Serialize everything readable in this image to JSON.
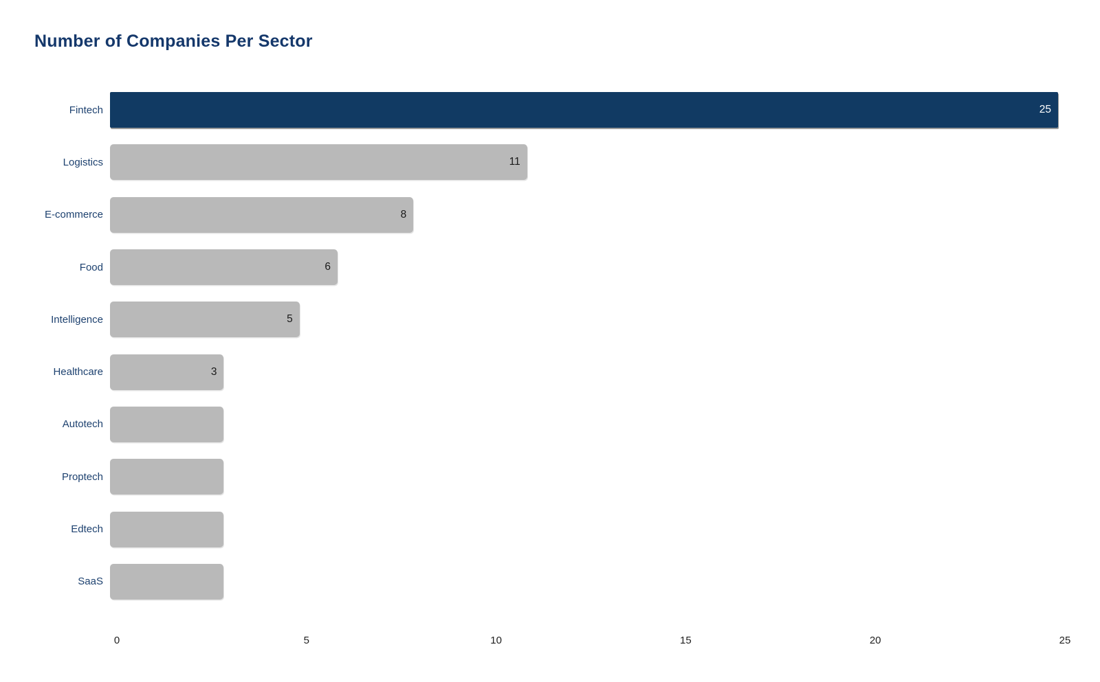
{
  "title": "Number of Companies Per Sector",
  "colors": {
    "background": "#ffffff",
    "title_text": "#15386b",
    "category_text": "#1d416f",
    "highlight_bar": "#113a63",
    "default_bar": "#b9b9b9",
    "value_on_dark": "#ffffff",
    "value_on_light": "#1a1a1a",
    "axis_text": "#1f1f1f"
  },
  "chart_data": {
    "type": "bar",
    "orientation": "horizontal",
    "title": "Number of Companies Per Sector",
    "categories": [
      "Fintech",
      "Logistics",
      "E-commerce",
      "Food",
      "Intelligence",
      "Healthcare",
      "Autotech",
      "Proptech",
      "Edtech",
      "SaaS"
    ],
    "values": [
      25,
      11,
      8,
      6,
      5,
      3,
      3,
      3,
      3,
      3
    ],
    "value_labels": [
      "25",
      "11",
      "8",
      "6",
      "5",
      "3",
      "",
      "",
      "",
      ""
    ],
    "highlighted_category": "Fintech",
    "xlabel": "",
    "ylabel": "",
    "xlim": [
      0,
      25
    ],
    "x_ticks": [
      0,
      5,
      10,
      15,
      20,
      25
    ],
    "grid": false,
    "legend": false
  }
}
